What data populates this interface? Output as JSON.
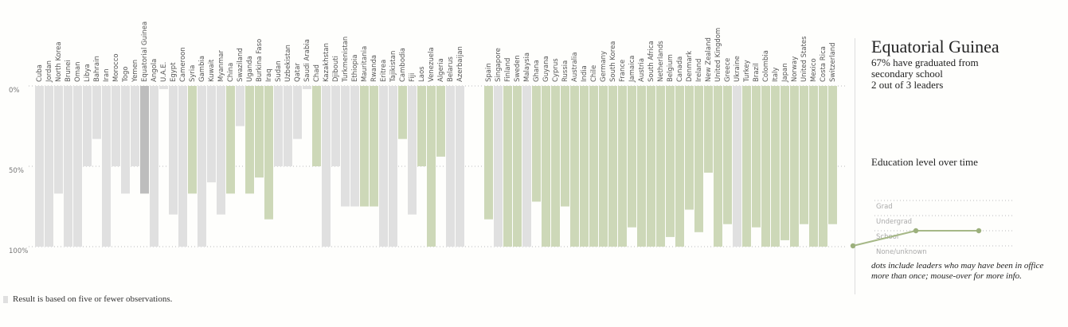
{
  "chart_data": {
    "type": "bar",
    "orientation": "vertical-inverted",
    "value_unit": "percent of leaders who graduated from secondary school",
    "yticks": [
      {
        "value": 0,
        "label": "0%"
      },
      {
        "value": 50,
        "label": "50%"
      },
      {
        "value": 100,
        "label": "100%"
      }
    ],
    "ylim": [
      0,
      100
    ],
    "colors": {
      "few_observations": "#e0e0e0",
      "normal": "#cdd8b8",
      "highlight": "#bdbdbd"
    },
    "group_a": [
      {
        "name": "Cuba",
        "value": 100,
        "few": true
      },
      {
        "name": "Jordan",
        "value": 100,
        "few": true
      },
      {
        "name": "North Korea",
        "value": 67,
        "few": true
      },
      {
        "name": "Brunei",
        "value": 100,
        "few": true
      },
      {
        "name": "Oman",
        "value": 100,
        "few": true
      },
      {
        "name": "Libya",
        "value": 50,
        "few": true
      },
      {
        "name": "Bahrain",
        "value": 33,
        "few": true
      },
      {
        "name": "Iran",
        "value": 100,
        "few": true
      },
      {
        "name": "Morocco",
        "value": 50,
        "few": true
      },
      {
        "name": "Togo",
        "value": 67,
        "few": true
      },
      {
        "name": "Yemen",
        "value": 50,
        "few": true
      },
      {
        "name": "Equatorial Guinea",
        "value": 67,
        "few": true,
        "highlight": true
      },
      {
        "name": "Angola",
        "value": 100,
        "few": true
      },
      {
        "name": "U.A.E.",
        "value": 2,
        "few": true
      },
      {
        "name": "Egypt",
        "value": 80,
        "few": true
      },
      {
        "name": "Cameroon",
        "value": 100,
        "few": true
      },
      {
        "name": "Syria",
        "value": 67,
        "few": false
      },
      {
        "name": "Gambia",
        "value": 100,
        "few": true
      },
      {
        "name": "Kuwait",
        "value": 60,
        "few": true
      },
      {
        "name": "Myanmar",
        "value": 80,
        "few": true
      },
      {
        "name": "China",
        "value": 67,
        "few": false
      },
      {
        "name": "Swaziland",
        "value": 25,
        "few": true
      },
      {
        "name": "Uganda",
        "value": 67,
        "few": false
      },
      {
        "name": "Burkina Faso",
        "value": 57,
        "few": false
      },
      {
        "name": "Iraq",
        "value": 83,
        "few": false
      },
      {
        "name": "Sudan",
        "value": 50,
        "few": true
      },
      {
        "name": "Uzbekistan",
        "value": 50,
        "few": true
      },
      {
        "name": "Qatar",
        "value": 33,
        "few": true
      },
      {
        "name": "Saudi Arabia",
        "value": 2,
        "few": true
      },
      {
        "name": "Chad",
        "value": 50,
        "few": false
      },
      {
        "name": "Kazakhstan",
        "value": 100,
        "few": true
      },
      {
        "name": "Djibouti",
        "value": 50,
        "few": true
      },
      {
        "name": "Turkmenistan",
        "value": 75,
        "few": true
      },
      {
        "name": "Ethiopia",
        "value": 75,
        "few": true
      },
      {
        "name": "Mauritania",
        "value": 75,
        "few": false
      },
      {
        "name": "Rwanda",
        "value": 75,
        "few": false
      },
      {
        "name": "Eritrea",
        "value": 100,
        "few": true
      },
      {
        "name": "Tajikistan",
        "value": 100,
        "few": true
      },
      {
        "name": "Cambodia",
        "value": 33,
        "few": false
      },
      {
        "name": "Fiji",
        "value": 80,
        "few": true
      },
      {
        "name": "Laos",
        "value": 50,
        "few": false
      },
      {
        "name": "Venezuela",
        "value": 100,
        "few": false
      },
      {
        "name": "Algeria",
        "value": 44,
        "few": false
      },
      {
        "name": "Belarus",
        "value": 100,
        "few": true
      },
      {
        "name": "Azerbaijan",
        "value": 100,
        "few": true
      }
    ],
    "group_b": [
      {
        "name": "Spain",
        "value": 83,
        "few": false
      },
      {
        "name": "Singapore",
        "value": 100,
        "few": true
      },
      {
        "name": "Finland",
        "value": 100,
        "few": false
      },
      {
        "name": "Sweden",
        "value": 100,
        "few": false
      },
      {
        "name": "Malaysia",
        "value": 100,
        "few": true
      },
      {
        "name": "Ghana",
        "value": 72,
        "few": false
      },
      {
        "name": "Guyana",
        "value": 100,
        "few": false
      },
      {
        "name": "Cyprus",
        "value": 100,
        "few": false
      },
      {
        "name": "Russia",
        "value": 75,
        "few": false
      },
      {
        "name": "Australia",
        "value": 100,
        "few": false
      },
      {
        "name": "India",
        "value": 100,
        "few": false
      },
      {
        "name": "Chile",
        "value": 100,
        "few": false
      },
      {
        "name": "Germany",
        "value": 100,
        "few": false
      },
      {
        "name": "South Korea",
        "value": 100,
        "few": false
      },
      {
        "name": "France",
        "value": 100,
        "few": false
      },
      {
        "name": "Jamaica",
        "value": 88,
        "few": false
      },
      {
        "name": "Austria",
        "value": 100,
        "few": false
      },
      {
        "name": "South Africa",
        "value": 100,
        "few": false
      },
      {
        "name": "Netherlands",
        "value": 100,
        "few": false
      },
      {
        "name": "Belgium",
        "value": 94,
        "few": false
      },
      {
        "name": "Canada",
        "value": 100,
        "few": false
      },
      {
        "name": "Denmark",
        "value": 77,
        "few": false
      },
      {
        "name": "Ireland",
        "value": 91,
        "few": false
      },
      {
        "name": "New Zealand",
        "value": 54,
        "few": false
      },
      {
        "name": "United Kingdom",
        "value": 100,
        "few": false
      },
      {
        "name": "Greece",
        "value": 86,
        "few": false
      },
      {
        "name": "Ukraine",
        "value": 100,
        "few": true
      },
      {
        "name": "Turkey",
        "value": 100,
        "few": false
      },
      {
        "name": "Brazil",
        "value": 88,
        "few": false
      },
      {
        "name": "Colombia",
        "value": 100,
        "few": false
      },
      {
        "name": "Italy",
        "value": 100,
        "few": false
      },
      {
        "name": "Japan",
        "value": 96,
        "few": false
      },
      {
        "name": "Norway",
        "value": 100,
        "few": false
      },
      {
        "name": "United States",
        "value": 86,
        "few": false
      },
      {
        "name": "Mexico",
        "value": 100,
        "few": false
      },
      {
        "name": "Costa Rica",
        "value": 100,
        "few": false
      },
      {
        "name": "Switzerland",
        "value": 86,
        "few": false
      }
    ]
  },
  "legend": {
    "text": "Result is based on five or fewer observations."
  },
  "detail": {
    "title": "Equatorial Guinea",
    "subtitle": "67% have graduated from secondary school",
    "leaders": "2 out of 3 leaders",
    "section_title": "Education level over time",
    "levels": [
      "Grad",
      "Undergrad",
      "School",
      "None/unknown"
    ],
    "timeline": [
      {
        "leader": 1,
        "level": "None/unknown"
      },
      {
        "leader": 2,
        "level": "School"
      },
      {
        "leader": 3,
        "level": "School"
      }
    ],
    "note": "dots include leaders who may have been in office more than once; mouse-over for more info."
  }
}
